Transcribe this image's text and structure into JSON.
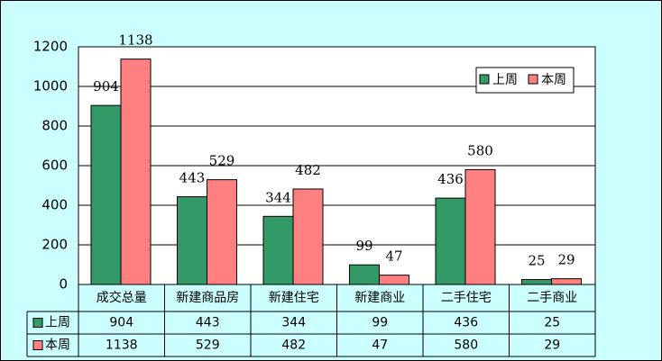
{
  "chart_data": {
    "type": "bar",
    "categories": [
      "成交总量",
      "新建商品房",
      "新建住宅",
      "新建商业",
      "二手住宅",
      "二手商业"
    ],
    "series": [
      {
        "name": "上周",
        "color": "#339966",
        "values": [
          904,
          443,
          344,
          99,
          436,
          25
        ]
      },
      {
        "name": "本周",
        "color": "#ff8080",
        "values": [
          1138,
          529,
          482,
          47,
          580,
          29
        ]
      }
    ],
    "ylim": [
      0,
      1200
    ],
    "yticks": [
      0,
      200,
      400,
      600,
      800,
      1000,
      1200
    ],
    "grid": true,
    "legend": "top-right",
    "data_table": true
  }
}
